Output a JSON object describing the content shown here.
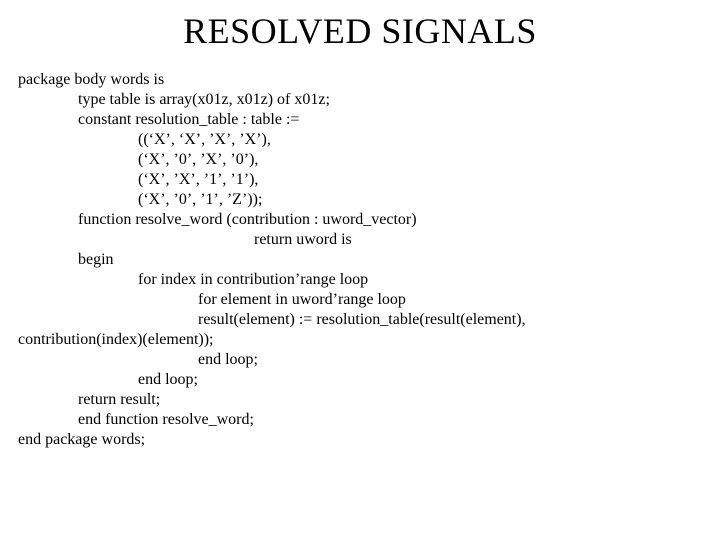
{
  "title": "RESOLVED SIGNALS",
  "code": {
    "l1": "package body words is",
    "l2": "               type table is array(x01z, x01z) of x01z;",
    "l3": "               constant resolution_table : table :=",
    "l4": "                              ((‘X’, ‘X’, ’X’, ’X’),",
    "l5": "                              (‘X’, ’0’, ’X’, ’0’),",
    "l6": "                              (‘X’, ’X’, ’1’, ’1’),",
    "l7": "                              (‘X’, ’0’, ’1’, ’Z’));",
    "l8": "               function resolve_word (contribution : uword_vector)",
    "l9": "                                                           return uword is",
    "l10": "               begin",
    "l11": "                              for index in contribution’range loop",
    "l12": "                                             for element in uword’range loop",
    "l13": "                                             result(element) := resolution_table(result(element),",
    "l14": "contribution(index)(element));",
    "l15": "                                             end loop;",
    "l16": "                              end loop;",
    "l17": "               return result;",
    "l18": "               end function resolve_word;",
    "l19": "end package words;"
  },
  "colors": {
    "background": "#ffffff",
    "text": "#000000"
  },
  "typography": {
    "title_fontsize": 36,
    "body_fontsize": 16,
    "font_family": "Times New Roman"
  }
}
